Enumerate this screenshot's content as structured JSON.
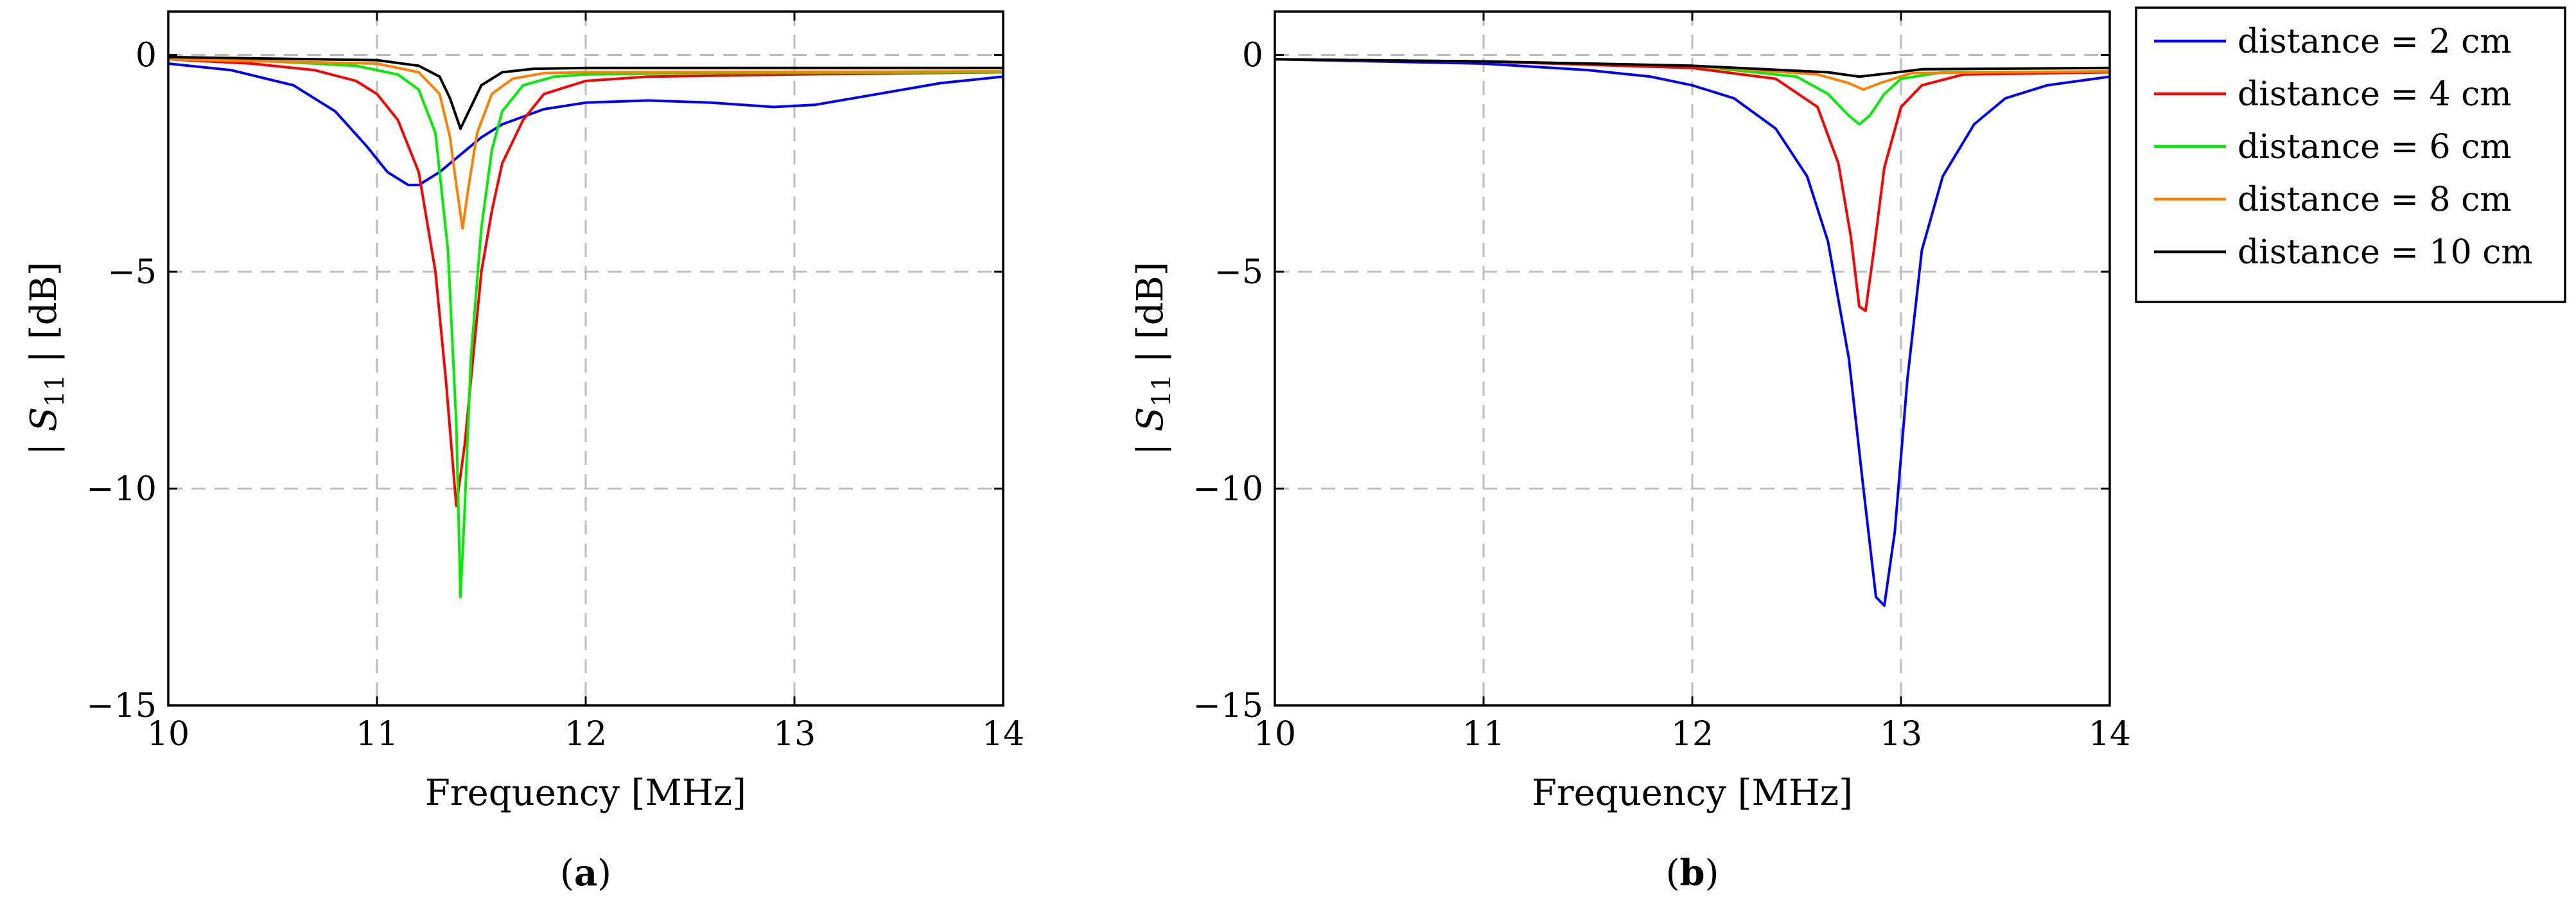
{
  "chart_data": [
    {
      "type": "line",
      "panel_label": "a",
      "caption_prefix": "(",
      "caption_suffix": ")",
      "xlabel": "Frequency [MHz]",
      "ylabel": "| S11 | [dB]",
      "ylabel_parts": {
        "pre": "| ",
        "sym": "S",
        "sub": "11",
        "post": " | [dB]"
      },
      "xlim": [
        10,
        14
      ],
      "ylim": [
        -15,
        1
      ],
      "xticks": [
        10,
        11,
        12,
        13,
        14
      ],
      "yticks": [
        0,
        -5,
        -10,
        -15
      ],
      "xtick_labels": [
        "10",
        "11",
        "12",
        "13",
        "14"
      ],
      "ytick_labels": [
        "0",
        "−5",
        "−10",
        "−15"
      ],
      "grid": true,
      "series": [
        {
          "name": "distance = 2 cm",
          "color": "#0000ff",
          "x": [
            10,
            10.3,
            10.6,
            10.8,
            10.95,
            11.05,
            11.15,
            11.2,
            11.3,
            11.4,
            11.5,
            11.6,
            11.8,
            12.0,
            12.3,
            12.6,
            12.9,
            13.1,
            13.4,
            13.7,
            14.0
          ],
          "y": [
            -0.2,
            -0.35,
            -0.7,
            -1.3,
            -2.1,
            -2.7,
            -3.0,
            -3.0,
            -2.7,
            -2.3,
            -1.9,
            -1.6,
            -1.25,
            -1.1,
            -1.05,
            -1.1,
            -1.2,
            -1.15,
            -0.9,
            -0.65,
            -0.5
          ]
        },
        {
          "name": "distance = 4 cm",
          "color": "#ff0000",
          "x": [
            10,
            10.4,
            10.7,
            10.9,
            11.0,
            11.1,
            11.2,
            11.28,
            11.33,
            11.38,
            11.42,
            11.46,
            11.5,
            11.55,
            11.6,
            11.7,
            11.8,
            12.0,
            12.3,
            13.0,
            14.0
          ],
          "y": [
            -0.1,
            -0.2,
            -0.35,
            -0.6,
            -0.9,
            -1.5,
            -2.7,
            -5.0,
            -7.5,
            -10.4,
            -9.0,
            -7.0,
            -5.0,
            -3.6,
            -2.5,
            -1.5,
            -0.9,
            -0.6,
            -0.5,
            -0.45,
            -0.4
          ]
        },
        {
          "name": "distance = 6 cm",
          "color": "#00ee00",
          "x": [
            10,
            10.5,
            10.9,
            11.1,
            11.2,
            11.28,
            11.34,
            11.38,
            11.4,
            11.42,
            11.45,
            11.5,
            11.55,
            11.6,
            11.7,
            11.85,
            12.0,
            12.5,
            14.0
          ],
          "y": [
            -0.1,
            -0.15,
            -0.25,
            -0.45,
            -0.8,
            -1.8,
            -4.5,
            -8.5,
            -12.5,
            -10.5,
            -7.0,
            -4.0,
            -2.2,
            -1.3,
            -0.7,
            -0.5,
            -0.45,
            -0.42,
            -0.4
          ]
        },
        {
          "name": "distance = 8 cm",
          "color": "#ff8000",
          "x": [
            10,
            11.0,
            11.2,
            11.3,
            11.35,
            11.38,
            11.41,
            11.44,
            11.48,
            11.55,
            11.65,
            11.8,
            12.0,
            14.0
          ],
          "y": [
            -0.1,
            -0.2,
            -0.4,
            -0.9,
            -1.9,
            -3.0,
            -4.0,
            -3.0,
            -1.8,
            -0.9,
            -0.55,
            -0.42,
            -0.4,
            -0.38
          ]
        },
        {
          "name": "distance = 10 cm",
          "color": "#000000",
          "x": [
            10,
            11.0,
            11.2,
            11.3,
            11.35,
            11.4,
            11.45,
            11.5,
            11.6,
            11.75,
            12.0,
            14.0
          ],
          "y": [
            -0.05,
            -0.12,
            -0.25,
            -0.5,
            -1.0,
            -1.7,
            -1.2,
            -0.7,
            -0.4,
            -0.32,
            -0.3,
            -0.3
          ]
        }
      ]
    },
    {
      "type": "line",
      "panel_label": "b",
      "caption_prefix": "(",
      "caption_suffix": ")",
      "xlabel": "Frequency [MHz]",
      "ylabel": "| S11 | [dB]",
      "ylabel_parts": {
        "pre": "| ",
        "sym": "S",
        "sub": "11",
        "post": " | [dB]"
      },
      "xlim": [
        10,
        14
      ],
      "ylim": [
        -15,
        1
      ],
      "xticks": [
        10,
        11,
        12,
        13,
        14
      ],
      "yticks": [
        0,
        -5,
        -10,
        -15
      ],
      "xtick_labels": [
        "10",
        "11",
        "12",
        "13",
        "14"
      ],
      "ytick_labels": [
        "0",
        "−5",
        "−10",
        "−15"
      ],
      "grid": true,
      "series": [
        {
          "name": "distance = 2 cm",
          "color": "#0000ff",
          "x": [
            10,
            10.5,
            11.0,
            11.5,
            11.8,
            12.0,
            12.2,
            12.4,
            12.55,
            12.65,
            12.75,
            12.82,
            12.88,
            12.92,
            12.97,
            13.03,
            13.1,
            13.2,
            13.35,
            13.5,
            13.7,
            14.0
          ],
          "y": [
            -0.1,
            -0.15,
            -0.2,
            -0.35,
            -0.5,
            -0.7,
            -1.0,
            -1.7,
            -2.8,
            -4.3,
            -7.0,
            -10.0,
            -12.5,
            -12.7,
            -11.0,
            -7.5,
            -4.5,
            -2.8,
            -1.6,
            -1.0,
            -0.7,
            -0.5
          ]
        },
        {
          "name": "distance = 4 cm",
          "color": "#ff0000",
          "x": [
            10,
            11.0,
            12.0,
            12.4,
            12.6,
            12.7,
            12.76,
            12.8,
            12.83,
            12.87,
            12.92,
            13.0,
            13.1,
            13.3,
            14.0
          ],
          "y": [
            -0.1,
            -0.15,
            -0.3,
            -0.55,
            -1.2,
            -2.5,
            -4.2,
            -5.8,
            -5.9,
            -4.5,
            -2.6,
            -1.2,
            -0.7,
            -0.45,
            -0.4
          ]
        },
        {
          "name": "distance = 6 cm",
          "color": "#00ee00",
          "x": [
            10,
            11.0,
            12.0,
            12.5,
            12.65,
            12.75,
            12.8,
            12.85,
            12.92,
            13.0,
            13.2,
            14.0
          ],
          "y": [
            -0.1,
            -0.15,
            -0.25,
            -0.5,
            -0.9,
            -1.4,
            -1.6,
            -1.4,
            -0.9,
            -0.55,
            -0.4,
            -0.38
          ]
        },
        {
          "name": "distance = 8 cm",
          "color": "#ff8000",
          "x": [
            10,
            11.0,
            12.0,
            12.6,
            12.75,
            12.82,
            12.9,
            13.05,
            14.0
          ],
          "y": [
            -0.1,
            -0.15,
            -0.25,
            -0.45,
            -0.65,
            -0.8,
            -0.65,
            -0.42,
            -0.38
          ]
        },
        {
          "name": "distance = 10 cm",
          "color": "#000000",
          "x": [
            10,
            11.0,
            12.0,
            12.65,
            12.8,
            12.95,
            13.1,
            14.0
          ],
          "y": [
            -0.1,
            -0.15,
            -0.25,
            -0.4,
            -0.5,
            -0.42,
            -0.33,
            -0.3
          ]
        }
      ]
    }
  ],
  "legend": {
    "placement": "right",
    "entries": [
      "distance = 2 cm",
      "distance = 4 cm",
      "distance = 6 cm",
      "distance = 8 cm",
      "distance = 10 cm"
    ],
    "colors": [
      "#0000ff",
      "#ff0000",
      "#00ee00",
      "#ff8000",
      "#000000"
    ]
  }
}
